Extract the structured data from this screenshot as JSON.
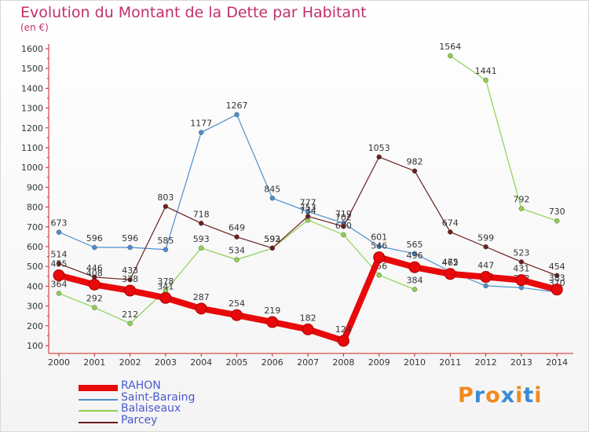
{
  "chart_data": {
    "type": "line",
    "title": "Evolution du Montant de la Dette par Habitant",
    "subtitle": "(en €)",
    "x": [
      "2000",
      "2001",
      "2002",
      "2003",
      "2004",
      "2005",
      "2006",
      "2007",
      "2008",
      "2009",
      "2010",
      "2011",
      "2012",
      "2013",
      "2014"
    ],
    "ylim": [
      100,
      1600
    ],
    "yticks": [
      100,
      200,
      300,
      400,
      500,
      600,
      700,
      800,
      900,
      1000,
      1100,
      1200,
      1300,
      1400,
      1500,
      1600
    ],
    "grid": false,
    "legend_position": "bottom-left",
    "series": [
      {
        "name": "RAHON",
        "color": "#e8090b",
        "values": [
          455,
          408,
          378,
          341,
          287,
          254,
          219,
          182,
          124,
          546,
          496,
          462,
          447,
          431,
          383
        ]
      },
      {
        "name": "Saint-Baraing",
        "color": "#4d8ecf",
        "values": [
          673,
          596,
          596,
          585,
          1177,
          1267,
          845,
          777,
          719,
          601,
          565,
          475,
          402,
          393,
          370
        ]
      },
      {
        "name": "Balaiseaux",
        "color": "#8fd14f",
        "values": [
          364,
          292,
          212,
          378,
          593,
          534,
          592,
          734,
          660,
          456,
          384,
          1564,
          1441,
          792,
          730
        ]
      },
      {
        "name": "Parcey",
        "color": "#6b1d1d",
        "values": [
          514,
          446,
          433,
          803,
          718,
          649,
          593,
          753,
          702,
          1053,
          982,
          674,
          599,
          523,
          454
        ]
      }
    ]
  },
  "logo": {
    "letters": [
      "P",
      "r",
      "o",
      "x",
      "i",
      "t",
      "i"
    ],
    "colors": [
      "#f08a1d",
      "#3a8bd6",
      "#f08a1d",
      "#3a8bd6",
      "#f08a1d",
      "#3a8bd6",
      "#f08a1d"
    ]
  }
}
